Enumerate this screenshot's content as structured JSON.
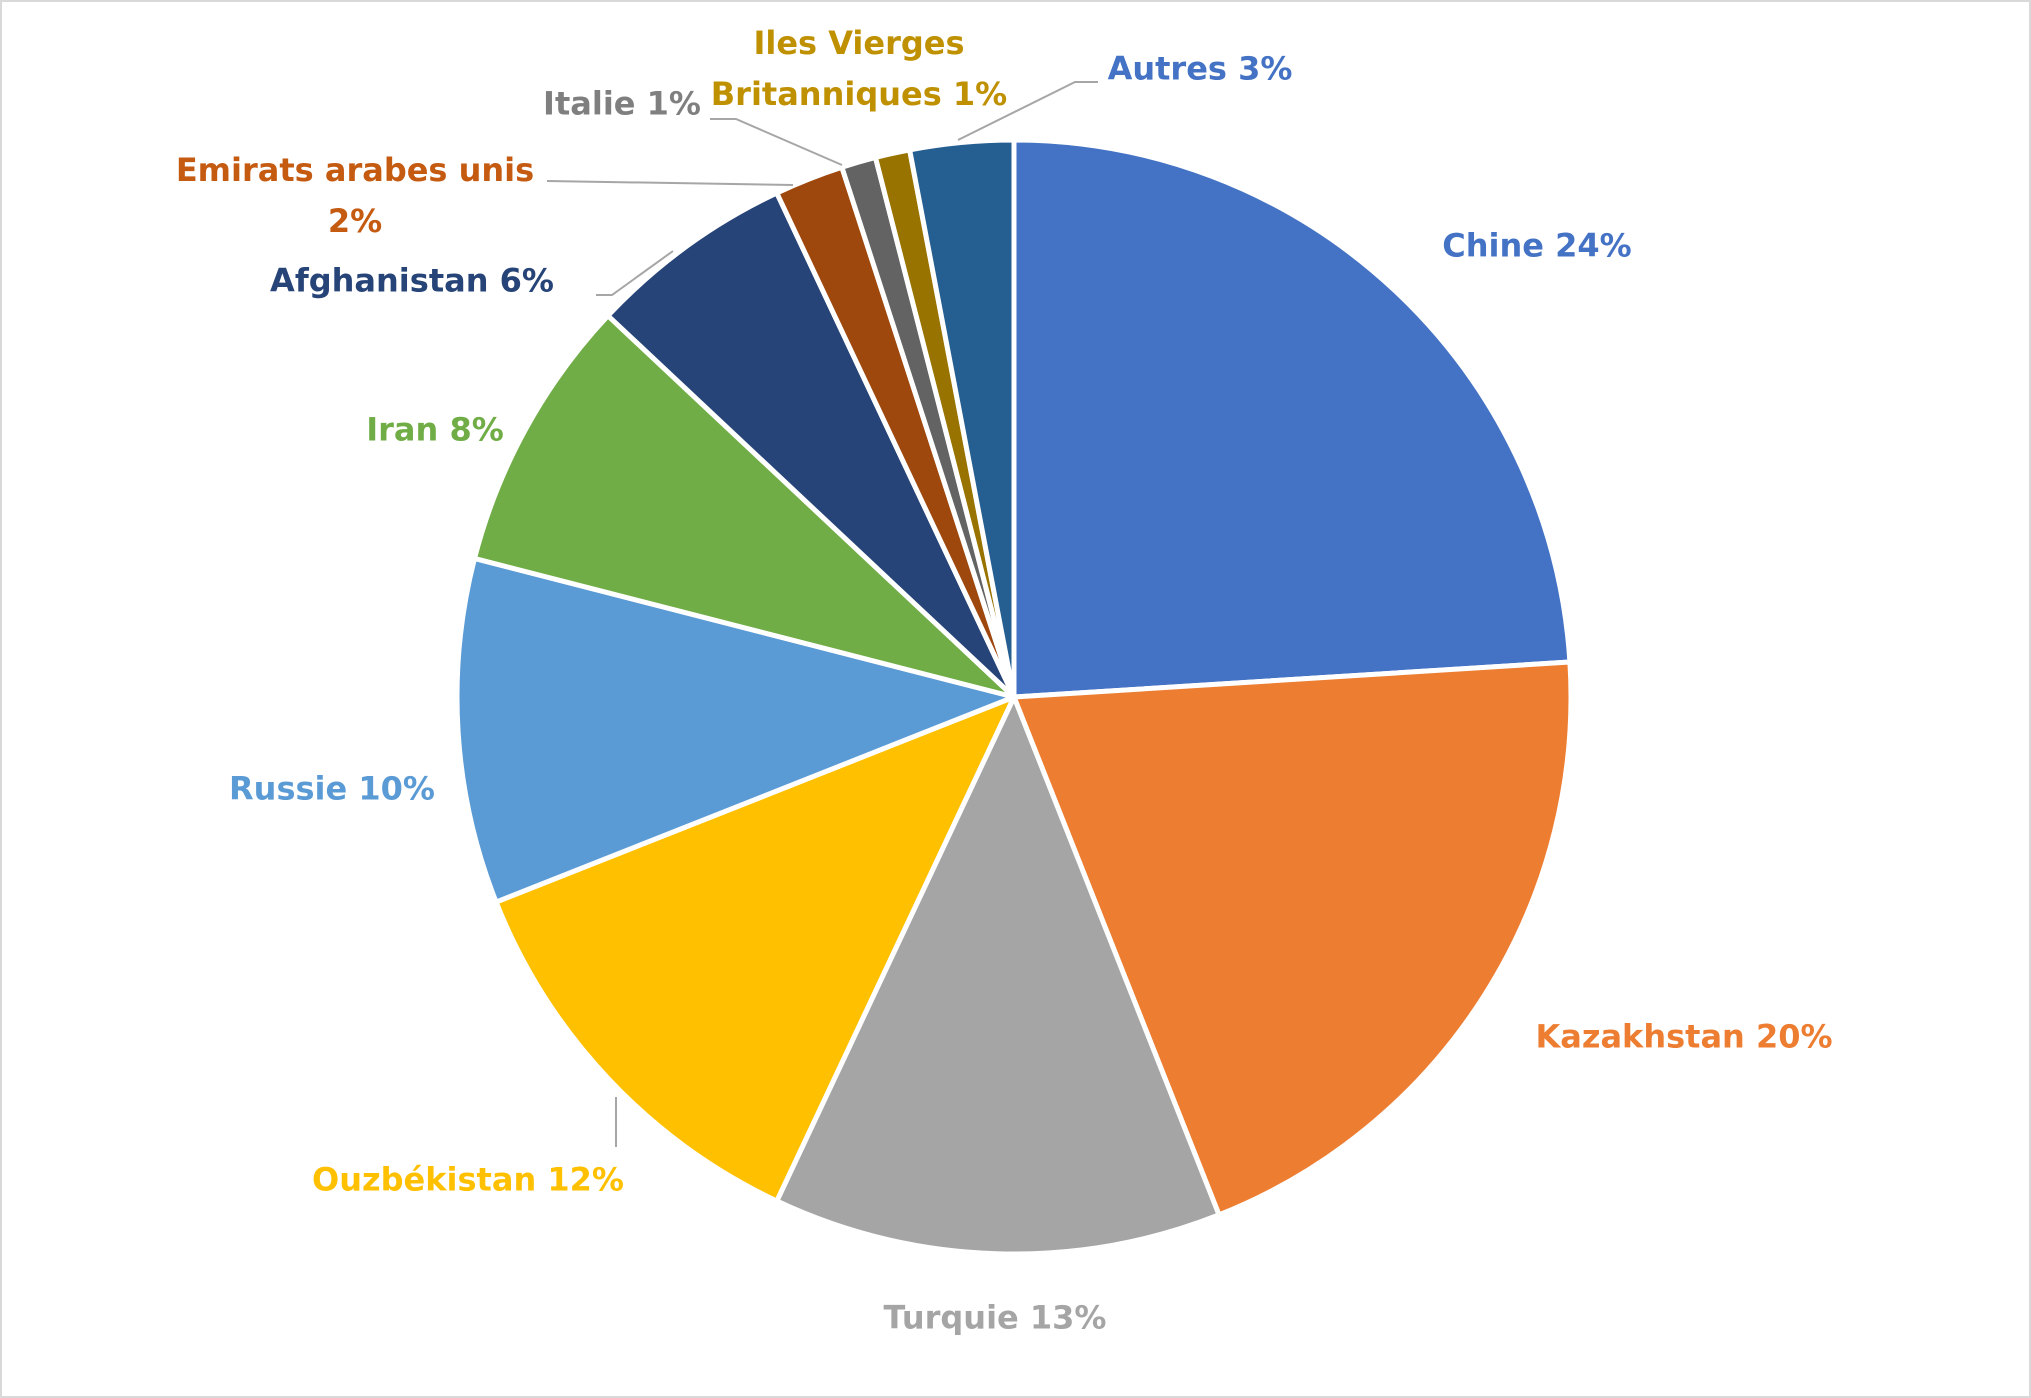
{
  "chart_data": {
    "type": "pie",
    "categories": [
      "Chine",
      "Kazakhstan",
      "Turquie",
      "Ouzbékistan",
      "Russie",
      "Iran",
      "Afghanistan",
      "Emirats arabes unis",
      "Italie",
      "Iles Vierges Britanniques",
      "Autres"
    ],
    "values": [
      24,
      20,
      13,
      12,
      10,
      8,
      6,
      2,
      1,
      1,
      3
    ],
    "value_labels": [
      "24%",
      "20%",
      "13%",
      "12%",
      "10%",
      "8%",
      "6%",
      "2%",
      "1%",
      "1%",
      "3%"
    ],
    "colors": [
      "#4472c4",
      "#ed7d31",
      "#a5a5a5",
      "#ffc000",
      "#5b9bd5",
      "#70ad47",
      "#264478",
      "#9e480e",
      "#636363",
      "#997300",
      "#255e91"
    ],
    "label_colors": [
      "#4472c4",
      "#ed7d31",
      "#a5a5a5",
      "#ffc000",
      "#5b9bd5",
      "#70ad47",
      "#264478",
      "#c55a11",
      "#7f7f7f",
      "#bf9000",
      "#4472c4"
    ]
  }
}
